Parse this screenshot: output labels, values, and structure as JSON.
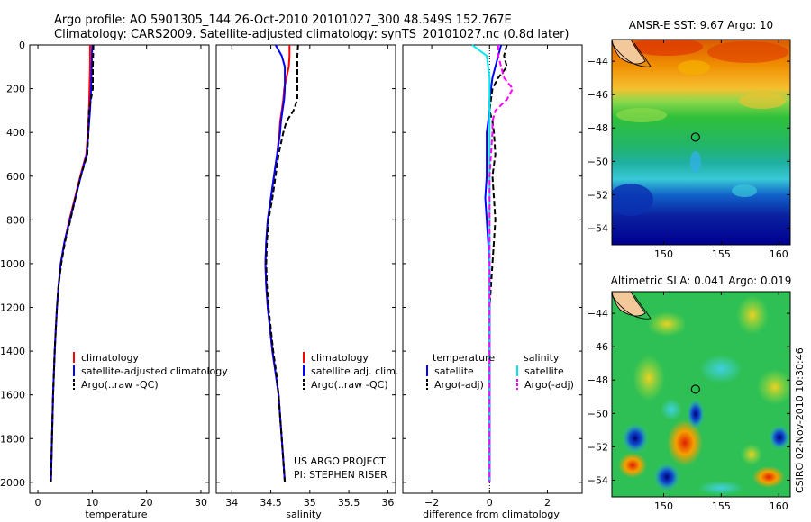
{
  "header": {
    "line1": "Argo profile: AO 5901305_144 26-Oct-2010 20101027_300 48.549S 152.767E",
    "line2": "Climatology: CARS2009. Satellite-adjusted climatology: synTS_20101027.nc (0.8d later)"
  },
  "project": {
    "line1": "US ARGO PROJECT",
    "line2": "PI: STEPHEN RISER"
  },
  "credit": "CSIRO 02-Nov-2010 10:30:46",
  "colors": {
    "climatology": "#ff0000",
    "satellite": "#0000ff",
    "argo": "#000000",
    "sal_satellite": "#00e5ee",
    "sal_argo": "#ff00ff"
  },
  "chart_data": [
    {
      "type": "line",
      "id": "temperature",
      "xlabel": "temperature",
      "ylabel": "",
      "xlim": [
        -1.5,
        31.5
      ],
      "ylim": [
        2050,
        0
      ],
      "xticks": [
        0,
        10,
        20,
        30
      ],
      "yticks": [
        0,
        200,
        400,
        600,
        800,
        1000,
        1200,
        1400,
        1600,
        1800,
        2000
      ],
      "depth": [
        0,
        100,
        200,
        300,
        400,
        500,
        600,
        700,
        800,
        900,
        1000,
        1100,
        1200,
        1300,
        1400,
        1500,
        1600,
        1700,
        1800,
        1900,
        2000
      ],
      "series": [
        {
          "name": "climatology",
          "color": "#ff0000",
          "dash": "",
          "values": [
            9.6,
            9.6,
            9.5,
            9.4,
            9.2,
            8.9,
            7.8,
            6.8,
            5.8,
            4.9,
            4.2,
            3.8,
            3.5,
            3.3,
            3.1,
            2.95,
            2.8,
            2.7,
            2.6,
            2.5,
            2.4
          ]
        },
        {
          "name": "satellite-adjusted climatology",
          "color": "#0000ff",
          "dash": "",
          "values": [
            10.0,
            9.9,
            9.8,
            9.6,
            9.3,
            9.0,
            7.9,
            6.9,
            5.9,
            4.9,
            4.2,
            3.8,
            3.5,
            3.3,
            3.1,
            2.95,
            2.8,
            2.7,
            2.6,
            2.5,
            2.4
          ]
        },
        {
          "name": "Argo(..raw -QC)",
          "color": "#000000",
          "dash": "6,3",
          "values": [
            10.2,
            10.1,
            10.1,
            9.4,
            9.3,
            9.1,
            7.9,
            6.9,
            6.0,
            5.0,
            4.3,
            3.8,
            3.5,
            3.3,
            3.1,
            2.95,
            2.8,
            2.7,
            2.6,
            2.5,
            2.4
          ]
        }
      ],
      "legend": [
        "climatology",
        "satellite-adjusted climatology",
        "Argo(..raw -QC)"
      ]
    },
    {
      "type": "line",
      "id": "salinity",
      "xlabel": "salinity",
      "ylabel": "",
      "xlim": [
        33.8,
        36.1
      ],
      "ylim": [
        2050,
        0
      ],
      "xticks": [
        34,
        34.5,
        35,
        35.5,
        36
      ],
      "depth": [
        0,
        50,
        100,
        150,
        200,
        250,
        300,
        350,
        400,
        500,
        600,
        700,
        800,
        900,
        1000,
        1100,
        1200,
        1300,
        1400,
        1500,
        1600,
        1700,
        1800,
        1900,
        2000
      ],
      "series": [
        {
          "name": "climatology",
          "color": "#ff0000",
          "dash": "",
          "values": [
            34.74,
            34.74,
            34.73,
            34.7,
            34.67,
            34.66,
            34.64,
            34.62,
            34.61,
            34.58,
            34.54,
            34.5,
            34.46,
            34.44,
            34.43,
            34.44,
            34.46,
            34.49,
            34.52,
            34.56,
            34.6,
            34.62,
            34.64,
            34.66,
            34.68
          ]
        },
        {
          "name": "satellite adj. clim.",
          "color": "#0000ff",
          "dash": "",
          "values": [
            34.56,
            34.64,
            34.68,
            34.68,
            34.68,
            34.67,
            34.65,
            34.63,
            34.62,
            34.58,
            34.54,
            34.5,
            34.46,
            34.44,
            34.43,
            34.44,
            34.46,
            34.49,
            34.52,
            34.56,
            34.6,
            34.62,
            34.64,
            34.66,
            34.68
          ]
        },
        {
          "name": "Argo(..raw -QC)",
          "color": "#000000",
          "dash": "6,3",
          "values": [
            34.85,
            34.84,
            34.84,
            34.84,
            34.84,
            34.84,
            34.79,
            34.7,
            34.66,
            34.6,
            34.56,
            34.52,
            34.47,
            34.45,
            34.44,
            34.45,
            34.47,
            34.5,
            34.53,
            34.57,
            34.6,
            34.62,
            34.64,
            34.66,
            34.68
          ]
        }
      ],
      "legend": [
        "climatology",
        "satellite adj. clim.",
        "Argo(..raw -QC)"
      ]
    },
    {
      "type": "line",
      "id": "difference",
      "xlabel": "difference from climatology",
      "ylabel": "",
      "xlim": [
        -3,
        3.2
      ],
      "ylim": [
        2050,
        0
      ],
      "xticks": [
        -2,
        0,
        2
      ],
      "depth": [
        0,
        50,
        100,
        150,
        200,
        250,
        300,
        350,
        400,
        500,
        600,
        700,
        800,
        900,
        1000,
        1200,
        1400,
        1600,
        1800,
        2000
      ],
      "series": [
        {
          "name": "temperature satellite",
          "color": "#0000ff",
          "dash": "",
          "values": [
            0.4,
            0.3,
            0.2,
            0.1,
            0.05,
            0.0,
            0.0,
            -0.05,
            -0.1,
            -0.1,
            -0.1,
            -0.15,
            -0.1,
            -0.05,
            0.0,
            0.0,
            0.0,
            0.0,
            0.0,
            0.0
          ]
        },
        {
          "name": "temperature Argo(-adj)",
          "color": "#000000",
          "dash": "6,3",
          "values": [
            0.6,
            0.5,
            0.6,
            0.3,
            0.1,
            0.05,
            0.0,
            0.1,
            0.15,
            0.2,
            0.1,
            0.15,
            0.2,
            0.15,
            0.1,
            0.0,
            0.0,
            0.0,
            0.0,
            0.0
          ]
        },
        {
          "name": "salinity satellite",
          "color": "#00e5ee",
          "dash": "",
          "values": [
            -0.6,
            -0.1,
            -0.05,
            0.0,
            0.0,
            0.0,
            0.0,
            0.0,
            0.0,
            0.0,
            0.0,
            0.0,
            0.0,
            0.0,
            0.0,
            0.0,
            0.0,
            0.0,
            0.0,
            0.0
          ]
        },
        {
          "name": "salinity Argo(-adj)",
          "color": "#ff00ff",
          "dash": "6,3",
          "values": [
            0.3,
            0.3,
            0.4,
            0.5,
            0.8,
            0.6,
            0.2,
            0.1,
            0.1,
            0.05,
            0.0,
            0.0,
            0.0,
            0.0,
            0.0,
            0.0,
            0.0,
            0.0,
            0.0,
            0.0
          ]
        }
      ],
      "legend_headers": [
        "temperature",
        "salinity"
      ],
      "legend": [
        "satellite",
        "Argo(-adj)",
        "satellite",
        "Argo(-adj)"
      ]
    },
    {
      "type": "heatmap",
      "id": "sst",
      "title": "AMSR-E SST: 9.67 Argo: 10",
      "xlim": [
        145.5,
        161
      ],
      "ylim": [
        -55,
        -42.7
      ],
      "xticks": [
        150,
        155,
        160
      ],
      "yticks": [
        -44,
        -46,
        -48,
        -50,
        -52,
        -54
      ],
      "float_position": {
        "lon": 152.767,
        "lat": -48.549
      }
    },
    {
      "type": "heatmap",
      "id": "sla",
      "title": "Altimetric SLA: 0.041 Argo: 0.019",
      "xlim": [
        145.5,
        161
      ],
      "ylim": [
        -55,
        -42.7
      ],
      "xticks": [
        150,
        155,
        160
      ],
      "yticks": [
        -44,
        -46,
        -48,
        -50,
        -52,
        -54
      ],
      "float_position": {
        "lon": 152.767,
        "lat": -48.549
      }
    }
  ]
}
